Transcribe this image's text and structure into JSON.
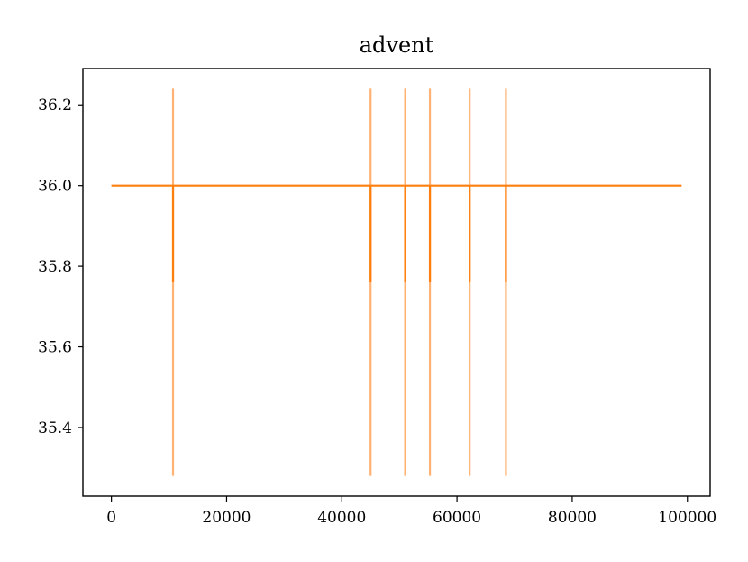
{
  "chart_data": {
    "type": "line",
    "title": "advent",
    "xlabel": "",
    "ylabel": "",
    "xlim": [
      -4950,
      103950
    ],
    "ylim": [
      35.23,
      36.29
    ],
    "xticks": [
      0,
      20000,
      40000,
      60000,
      80000,
      100000
    ],
    "xtick_labels": [
      "0",
      "20000",
      "40000",
      "60000",
      "80000",
      "100000"
    ],
    "yticks": [
      35.4,
      35.6,
      35.8,
      36.0,
      36.2
    ],
    "ytick_labels": [
      "35.4",
      "35.6",
      "35.8",
      "36.0",
      "36.2"
    ],
    "grid": false,
    "legend": "none",
    "series": [
      {
        "color": "#ff7f0e",
        "x": [
          0,
          10700,
          10700,
          10700,
          45000,
          45000,
          45000,
          51000,
          51000,
          51000,
          55300,
          55300,
          55300,
          62200,
          62200,
          62200,
          68500,
          68500,
          68500,
          99000
        ],
        "y": [
          36.0,
          36.0,
          35.76,
          36.0,
          36.0,
          35.76,
          36.0,
          36.0,
          35.76,
          36.0,
          36.0,
          35.76,
          36.0,
          36.0,
          35.76,
          36.0,
          36.0,
          35.76,
          36.0,
          36.0
        ]
      }
    ],
    "band_series": {
      "color": "#ffb273",
      "x": [
        10700,
        45000,
        51000,
        55300,
        62200,
        68500
      ],
      "y_low": 35.28,
      "y_high": 36.24
    }
  }
}
